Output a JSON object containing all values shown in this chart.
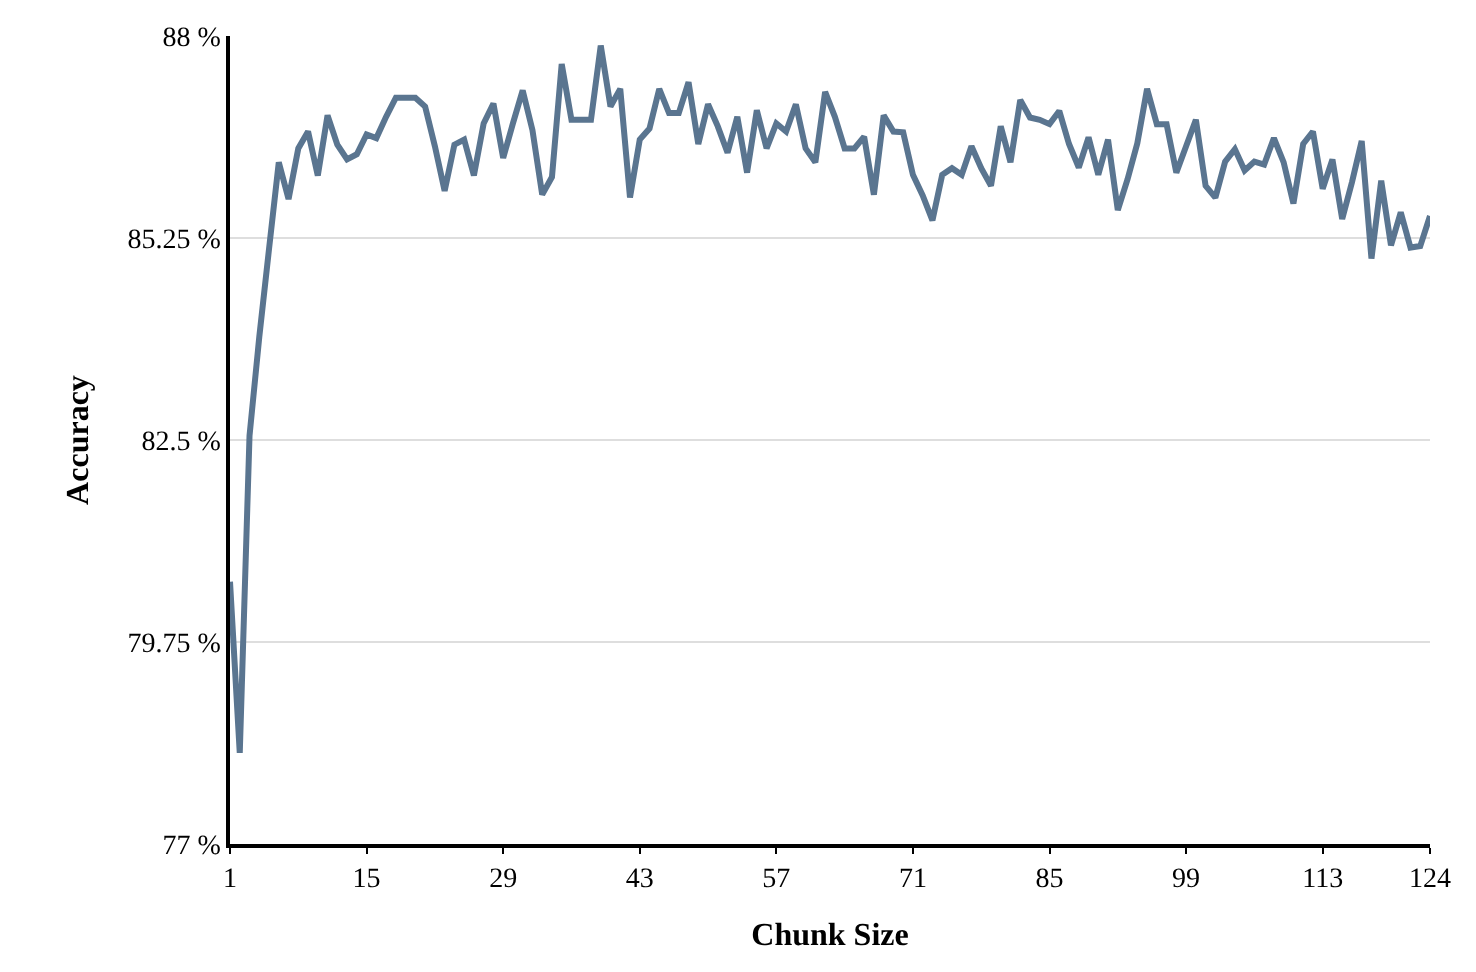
{
  "chart_data": {
    "type": "line",
    "xlabel": "Chunk Size",
    "ylabel": "Accuracy",
    "x": [
      1,
      2,
      3,
      4,
      5,
      6,
      7,
      8,
      9,
      10,
      11,
      12,
      13,
      14,
      15,
      16,
      17,
      18,
      19,
      20,
      21,
      22,
      23,
      24,
      25,
      26,
      27,
      28,
      29,
      30,
      31,
      32,
      33,
      34,
      35,
      36,
      37,
      38,
      39,
      40,
      41,
      42,
      43,
      44,
      45,
      46,
      47,
      48,
      49,
      50,
      51,
      52,
      53,
      54,
      55,
      56,
      57,
      58,
      59,
      60,
      61,
      62,
      63,
      64,
      65,
      66,
      67,
      68,
      69,
      70,
      71,
      72,
      73,
      74,
      75,
      76,
      77,
      78,
      79,
      80,
      81,
      82,
      83,
      84,
      85,
      86,
      87,
      88,
      89,
      90,
      91,
      92,
      93,
      94,
      95,
      96,
      97,
      98,
      99,
      100,
      101,
      102,
      103,
      104,
      105,
      106,
      107,
      108,
      109,
      110,
      111,
      112,
      113,
      114,
      115,
      116,
      117,
      118,
      119,
      120,
      121,
      122,
      123,
      124
    ],
    "series": [
      {
        "color": "#5a7590",
        "values": [
          80.57,
          78.24,
          82.56,
          83.9,
          85.1,
          86.28,
          85.78,
          86.47,
          86.7,
          86.1,
          86.92,
          86.52,
          86.32,
          86.39,
          86.66,
          86.61,
          86.9,
          87.16,
          87.16,
          87.16,
          87.04,
          86.5,
          85.89,
          86.52,
          86.59,
          86.1,
          86.81,
          87.08,
          86.34,
          86.81,
          87.26,
          86.72,
          85.84,
          86.08,
          87.62,
          86.86,
          86.86,
          86.86,
          87.87,
          87.04,
          87.28,
          85.8,
          86.59,
          86.74,
          87.28,
          86.95,
          86.95,
          87.37,
          86.53,
          87.07,
          86.77,
          86.41,
          86.9,
          86.14,
          86.99,
          86.47,
          86.81,
          86.7,
          87.07,
          86.47,
          86.28,
          87.24,
          86.9,
          86.47,
          86.47,
          86.63,
          85.84,
          86.92,
          86.7,
          86.69,
          86.11,
          85.83,
          85.49,
          86.11,
          86.2,
          86.11,
          86.5,
          86.2,
          85.96,
          86.77,
          86.28,
          87.13,
          86.89,
          86.86,
          86.8,
          86.98,
          86.53,
          86.21,
          86.62,
          86.11,
          86.59,
          85.63,
          86.05,
          86.54,
          87.28,
          86.8,
          86.8,
          86.14,
          86.5,
          86.86,
          85.96,
          85.8,
          86.29,
          86.46,
          86.17,
          86.29,
          86.25,
          86.61,
          86.28,
          85.72,
          86.53,
          86.7,
          85.92,
          86.32,
          85.51,
          86.01,
          86.57,
          84.97,
          86.03,
          85.15,
          85.6,
          85.12,
          85.14,
          85.55
        ]
      }
    ],
    "xlim": [
      1,
      124
    ],
    "xticks": [
      1,
      15,
      29,
      43,
      57,
      71,
      85,
      99,
      113,
      124
    ],
    "ylim": [
      77,
      88
    ],
    "yticks": [
      {
        "value": 77,
        "label": "77 %"
      },
      {
        "value": 79.75,
        "label": "79.75 %"
      },
      {
        "value": 82.5,
        "label": "82.5 %"
      },
      {
        "value": 85.25,
        "label": "85.25 %"
      },
      {
        "value": 88,
        "label": "88 %"
      }
    ],
    "grid": "y",
    "marker": "none",
    "line_style": "solid"
  }
}
